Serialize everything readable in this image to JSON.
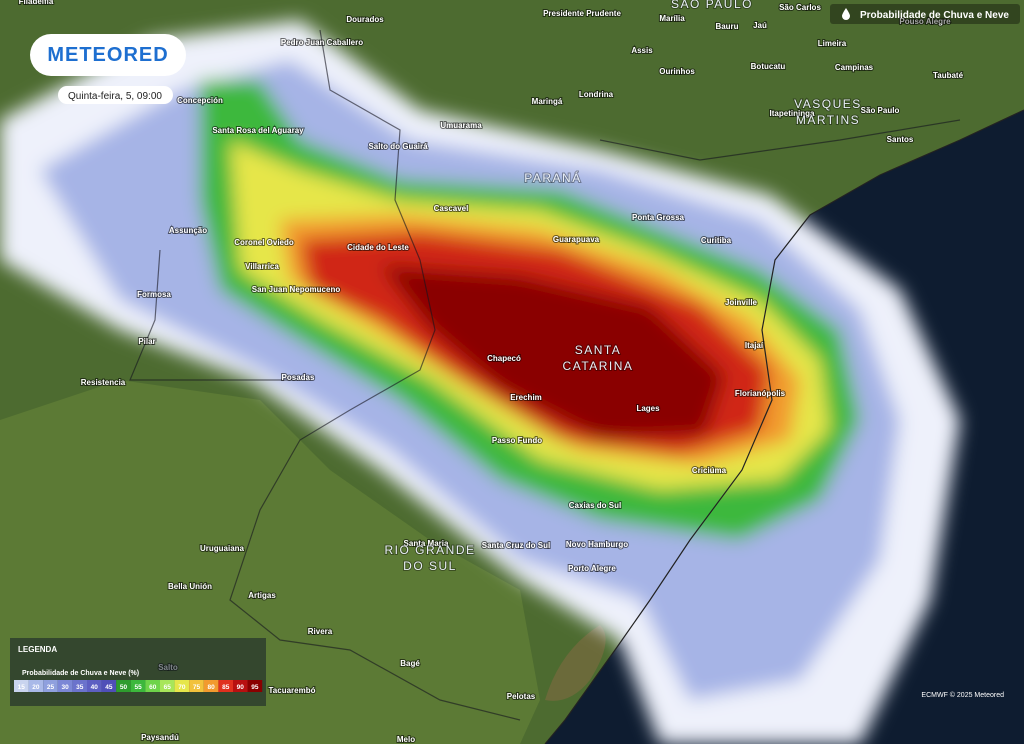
{
  "header": {
    "brand": "METEORED",
    "datetime": "Quinta-feira, 5, 09:00",
    "layer": "Probabilidade de Chuva e Neve"
  },
  "legend": {
    "title": "LEGENDA",
    "subtitle": "Probabilidade de Chuva e Neve (%)",
    "scale": [
      {
        "value": 15,
        "color": "#c9d4ef"
      },
      {
        "value": 20,
        "color": "#a9b9e8"
      },
      {
        "value": 25,
        "color": "#8fa0de"
      },
      {
        "value": 30,
        "color": "#7b87d6"
      },
      {
        "value": 35,
        "color": "#6b73cc"
      },
      {
        "value": 40,
        "color": "#5d5fc2"
      },
      {
        "value": 45,
        "color": "#4f4fb8"
      },
      {
        "value": 50,
        "color": "#2e9c2e"
      },
      {
        "value": 55,
        "color": "#3cb83c"
      },
      {
        "value": 60,
        "color": "#6ed44a"
      },
      {
        "value": 65,
        "color": "#a8e65a"
      },
      {
        "value": 70,
        "color": "#e6e64a"
      },
      {
        "value": 75,
        "color": "#f2c23c"
      },
      {
        "value": 80,
        "color": "#f29a2e"
      },
      {
        "value": 85,
        "color": "#e0301e"
      },
      {
        "value": 90,
        "color": "#b81010"
      },
      {
        "value": 95,
        "color": "#8a0000"
      }
    ]
  },
  "credit": "ECMWF © 2025 Meteored",
  "regions": [
    "SÃO PAULO",
    "PARANÁ",
    "SANTA",
    "CATARINA",
    "RIO GRANDE",
    "DO SUL",
    "VASQUES",
    "MARTINS"
  ],
  "cities": [
    "Filadelfia",
    "Dourados",
    "Presidente Prudente",
    "Marília",
    "Bauru",
    "Jaú",
    "São Carlos",
    "Pouso Alegre",
    "Pedro Juan Caballero",
    "Assis",
    "Limeira",
    "Ourinhos",
    "Botucatu",
    "Campinas",
    "Taubaté",
    "Concepción",
    "Maringá",
    "Londrina",
    "Itapetininga",
    "São Paulo",
    "Santos",
    "Santa Rosa del Aguaray",
    "Umuarama",
    "Salto do Guairá",
    "Assunção",
    "Cascavel",
    "Ponta Grossa",
    "Coronel Oviedo",
    "Cidade do Leste",
    "Guarapuava",
    "Curitiba",
    "Villarrica",
    "Formosa",
    "San Juan Nepomuceno",
    "Joinville",
    "Pilar",
    "Itajaí",
    "Chapecó",
    "Resistencia",
    "Posadas",
    "Florianópolis",
    "Erechim",
    "Lages",
    "Passo Fundo",
    "Criciúma",
    "Caxias do Sul",
    "Uruguaiana",
    "Santa Maria",
    "Santa Cruz do Sul",
    "Novo Hamburgo",
    "Porto Alegre",
    "Bella Unión",
    "Artigas",
    "Rivera",
    "Salto",
    "Bagé",
    "Tacuarembó",
    "Pelotas",
    "Paysandú",
    "Melo"
  ]
}
